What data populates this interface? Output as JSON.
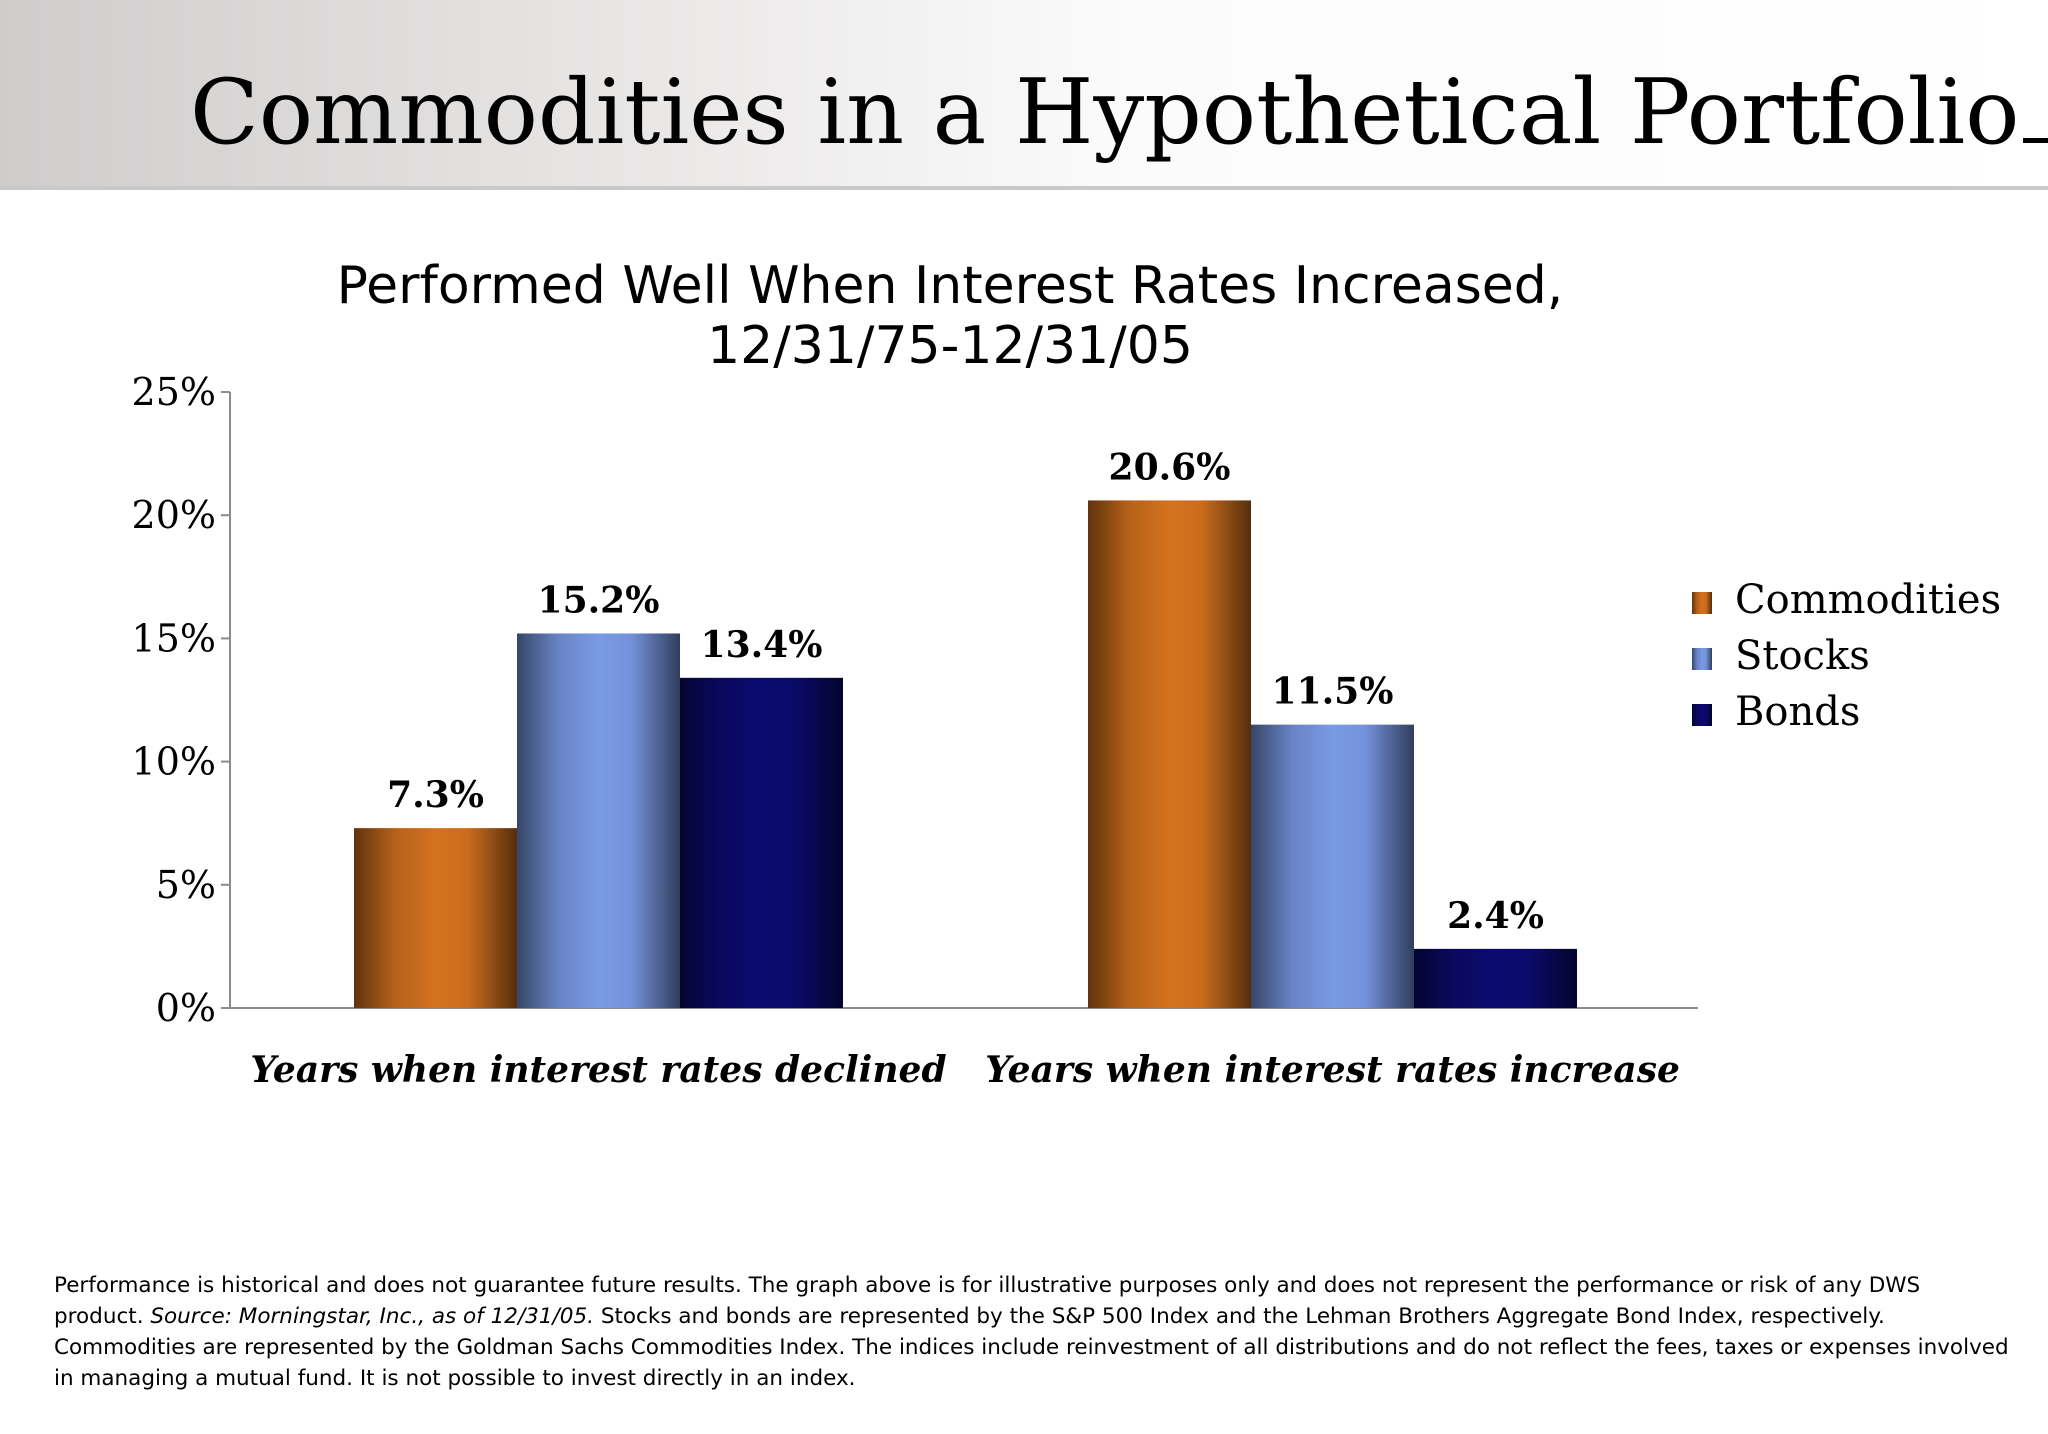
{
  "slide": {
    "title": "Commodities in a Hypothetical Portfolio"
  },
  "chart_data": {
    "type": "bar",
    "title_line1": "Performed Well When Interest Rates Increased,",
    "title_line2": "12/31/75-12/31/05",
    "categories": [
      "Years when interest rates declined",
      "Years when interest rates increase"
    ],
    "series": [
      {
        "name": "Commodities",
        "values": [
          7.3,
          20.6
        ],
        "labels": [
          "7.3%",
          "20.6%"
        ],
        "color": "#d5721f"
      },
      {
        "name": "Stocks",
        "values": [
          15.2,
          11.5
        ],
        "labels": [
          "15.2%",
          "11.5%"
        ],
        "color": "#7a9ae6"
      },
      {
        "name": "Bonds",
        "values": [
          13.4,
          2.4
        ],
        "labels": [
          "13.4%",
          "2.4%"
        ],
        "color": "#0a0a70"
      }
    ],
    "yticks": [
      "0%",
      "5%",
      "10%",
      "15%",
      "20%",
      "25%"
    ],
    "ylim": [
      0,
      25
    ],
    "legend_position": "right",
    "grid": false
  },
  "footnote": {
    "part1": "Performance is historical and does not guarantee future results. The graph above is for illustrative purposes only and does not represent the performance or risk of any DWS product. ",
    "source": "Source: Morningstar, Inc., as of 12/31/05.",
    "part2": " Stocks and bonds are represented by the S&P 500 Index and the Lehman Brothers Aggregate Bond Index, respectively.  Commodities are represented by the Goldman Sachs Commodities Index. The indices include reinvestment of all distributions and do not reflect the fees, taxes or expenses involved in managing a mutual fund. It is not possible to invest directly in an index."
  }
}
